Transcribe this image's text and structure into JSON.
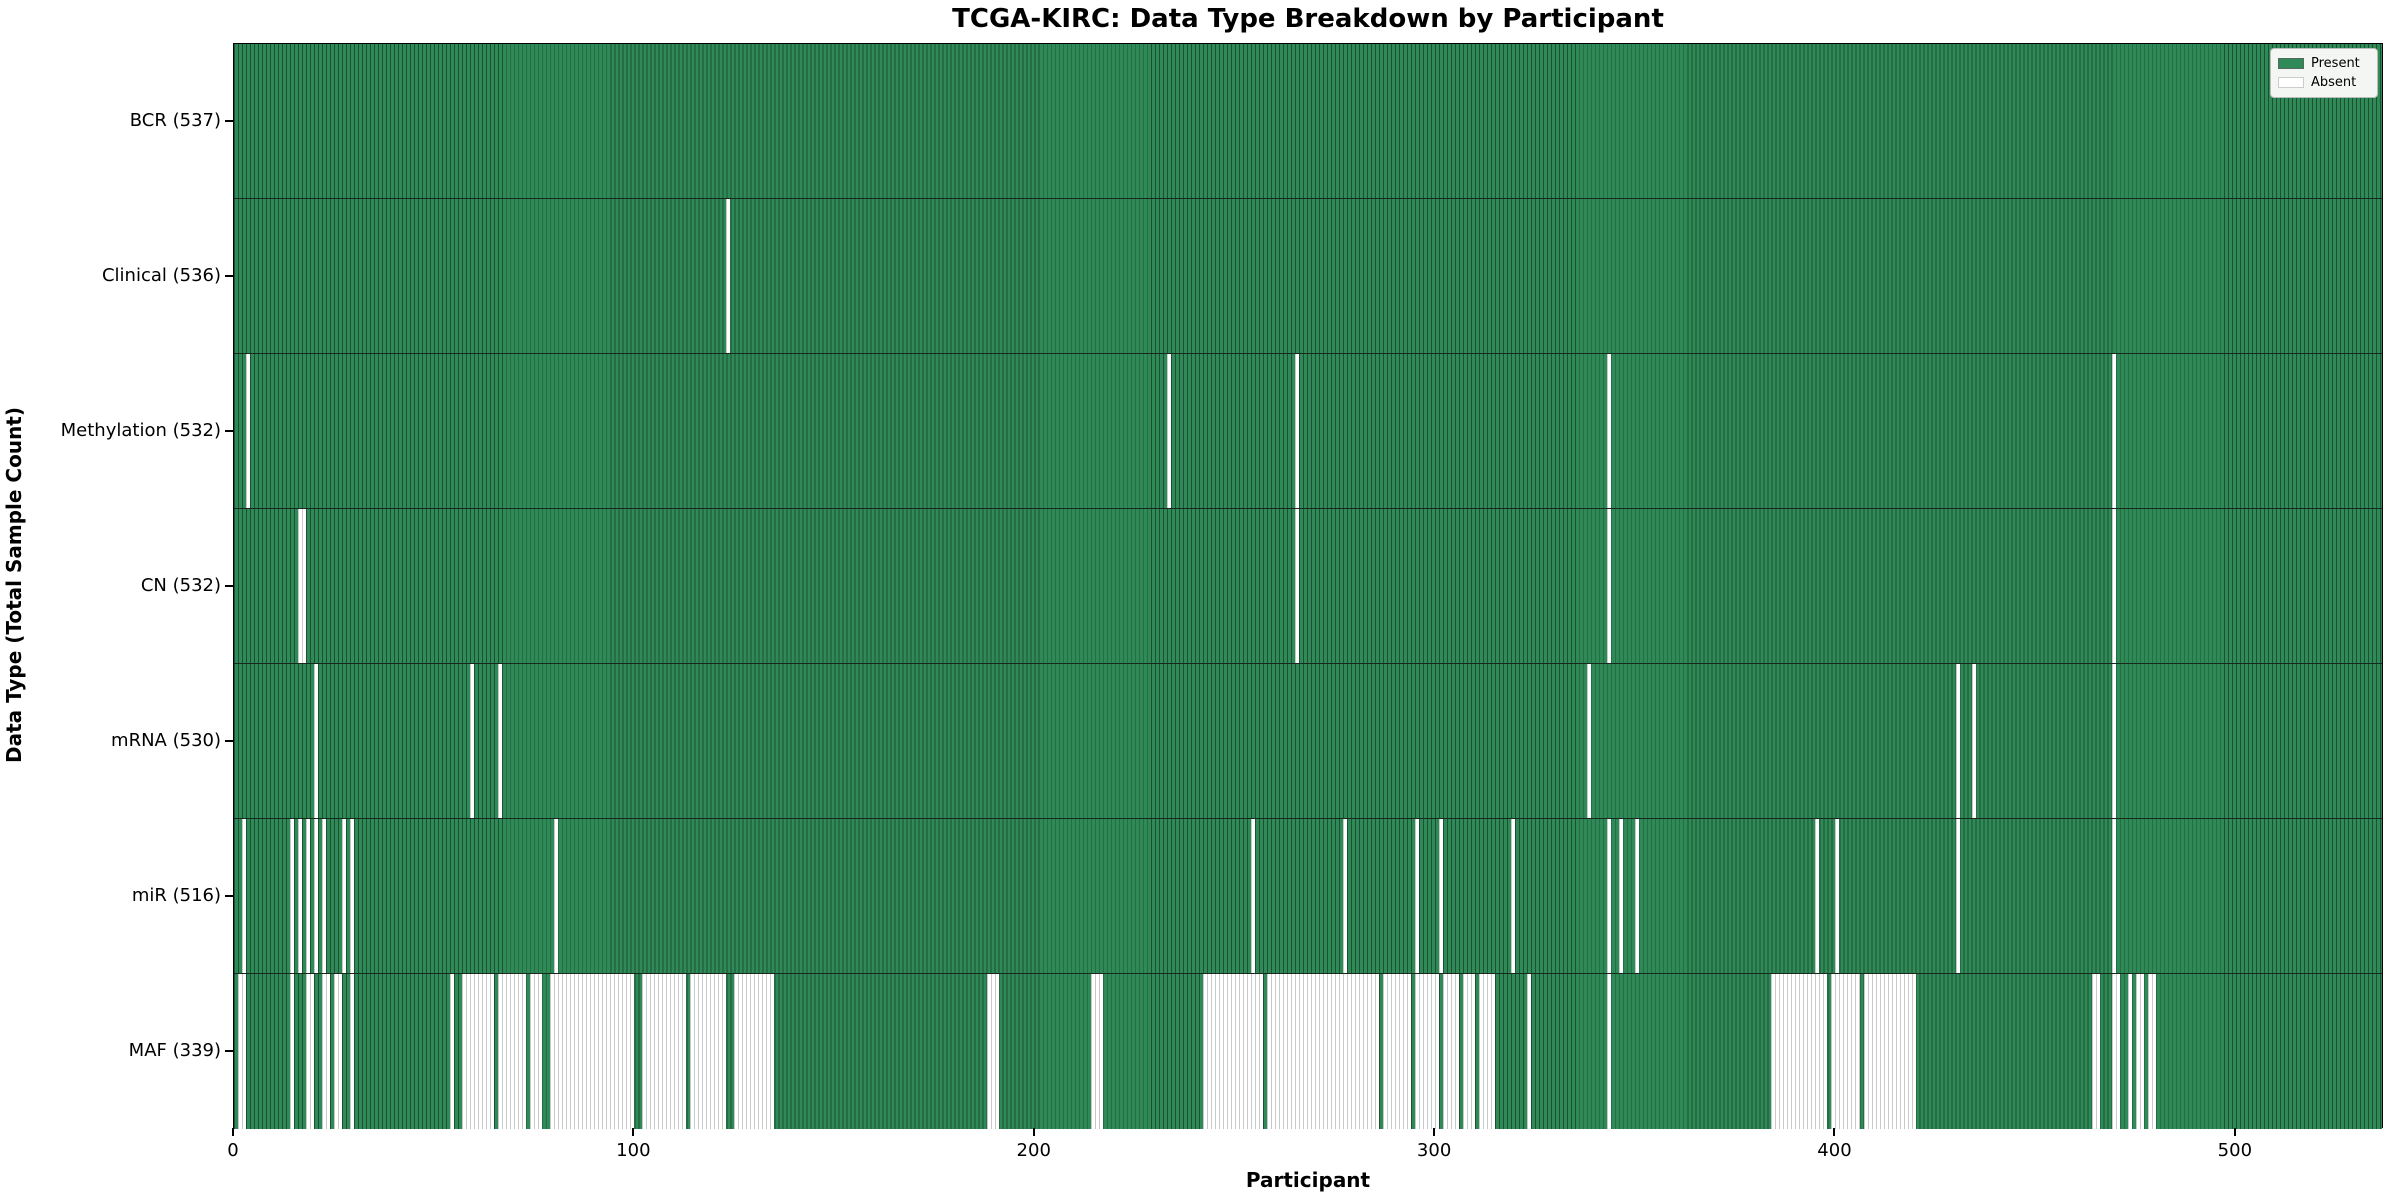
{
  "title": "TCGA-KIRC: Data Type Breakdown by Participant",
  "xlabel": "Participant",
  "ylabel": "Data Type (Total Sample Count)",
  "colors": {
    "present": "#2e8b57",
    "present_edge": "#1e4f33",
    "absent": "#ffffff",
    "absent_edge": "#c9c9c9",
    "row_separator": "#17281d",
    "legend_bg": "#f4f6f4"
  },
  "legend": {
    "entries": [
      {
        "label": "Present",
        "color": "#2e8b57"
      },
      {
        "label": "Absent",
        "color": "#ffffff"
      }
    ]
  },
  "chart_data": {
    "type": "heatmap",
    "title": "TCGA-KIRC: Data Type Breakdown by Participant",
    "xlabel": "Participant",
    "ylabel": "Data Type (Total Sample Count)",
    "n_participants": 537,
    "xlim": [
      0,
      537
    ],
    "x_ticks": [
      0,
      100,
      200,
      300,
      400,
      500
    ],
    "grid": false,
    "legend_position": "upper right",
    "legend_entries": [
      "Present",
      "Absent"
    ],
    "rows": [
      {
        "label": "BCR (537)",
        "data_type": "BCR",
        "present_count": 537,
        "absent_ranges": []
      },
      {
        "label": "Clinical (536)",
        "data_type": "Clinical",
        "present_count": 536,
        "absent_ranges": [
          [
            123,
            123
          ]
        ]
      },
      {
        "label": "Methylation (532)",
        "data_type": "Methylation",
        "present_count": 532,
        "absent_ranges": [
          [
            3,
            3
          ],
          [
            233,
            233
          ],
          [
            265,
            265
          ],
          [
            343,
            343
          ],
          [
            469,
            469
          ]
        ]
      },
      {
        "label": "CN (532)",
        "data_type": "CN",
        "present_count": 532,
        "absent_ranges": [
          [
            16,
            17
          ],
          [
            265,
            265
          ],
          [
            343,
            343
          ],
          [
            469,
            469
          ]
        ]
      },
      {
        "label": "mRNA (530)",
        "data_type": "mRNA",
        "present_count": 530,
        "absent_ranges": [
          [
            20,
            20
          ],
          [
            59,
            59
          ],
          [
            66,
            66
          ],
          [
            338,
            338
          ],
          [
            430,
            430
          ],
          [
            434,
            434
          ],
          [
            469,
            469
          ]
        ]
      },
      {
        "label": "miR (516)",
        "data_type": "miR",
        "present_count": 516,
        "absent_ranges": [
          [
            2,
            2
          ],
          [
            14,
            14
          ],
          [
            16,
            16
          ],
          [
            18,
            18
          ],
          [
            20,
            20
          ],
          [
            22,
            22
          ],
          [
            27,
            27
          ],
          [
            29,
            29
          ],
          [
            80,
            80
          ],
          [
            254,
            254
          ],
          [
            277,
            277
          ],
          [
            295,
            295
          ],
          [
            301,
            301
          ],
          [
            319,
            319
          ],
          [
            343,
            343
          ],
          [
            346,
            346
          ],
          [
            350,
            350
          ],
          [
            395,
            395
          ],
          [
            400,
            400
          ],
          [
            430,
            430
          ],
          [
            469,
            469
          ]
        ]
      },
      {
        "label": "MAF (339)",
        "data_type": "MAF",
        "present_count": 339,
        "absent_ranges": [
          [
            1,
            2
          ],
          [
            14,
            14
          ],
          [
            18,
            19
          ],
          [
            22,
            23
          ],
          [
            25,
            26
          ],
          [
            29,
            29
          ],
          [
            54,
            54
          ],
          [
            57,
            64
          ],
          [
            66,
            72
          ],
          [
            74,
            76
          ],
          [
            79,
            99
          ],
          [
            102,
            112
          ],
          [
            114,
            122
          ],
          [
            125,
            134
          ],
          [
            188,
            190
          ],
          [
            214,
            216
          ],
          [
            242,
            256
          ],
          [
            258,
            285
          ],
          [
            287,
            293
          ],
          [
            295,
            300
          ],
          [
            302,
            305
          ],
          [
            307,
            309
          ],
          [
            311,
            314
          ],
          [
            323,
            323
          ],
          [
            343,
            343
          ],
          [
            384,
            397
          ],
          [
            399,
            405
          ],
          [
            407,
            419
          ],
          [
            464,
            465
          ],
          [
            469,
            470
          ],
          [
            473,
            473
          ],
          [
            475,
            476
          ],
          [
            478,
            479
          ]
        ]
      }
    ]
  }
}
